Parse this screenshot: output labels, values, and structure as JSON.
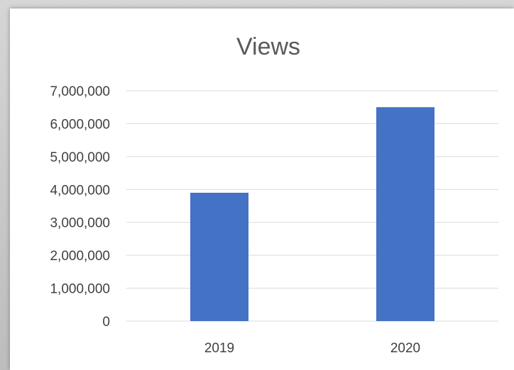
{
  "chart_data": {
    "type": "bar",
    "title": "Views",
    "categories": [
      "2019",
      "2020"
    ],
    "values": [
      3900000,
      6500000
    ],
    "xlabel": "",
    "ylabel": "",
    "ylim": [
      0,
      7000000
    ],
    "y_ticks": [
      "0",
      "1,000,000",
      "2,000,000",
      "3,000,000",
      "4,000,000",
      "5,000,000",
      "6,000,000",
      "7,000,000"
    ],
    "grid": true,
    "legend": "none",
    "bar_color": "#4472c4"
  }
}
